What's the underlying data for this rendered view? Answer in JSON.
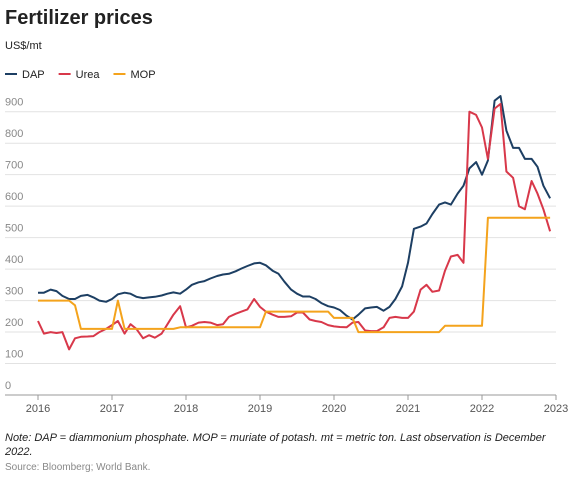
{
  "chart_data": {
    "type": "line",
    "title": "Fertilizer prices",
    "subtitle": "US$/mt",
    "note": "Note: DAP = diammonium phosphate. MOP = muriate of potash. mt = metric ton. Last observation is December 2022.",
    "source": "Source: Bloomberg; World Bank.",
    "x": [
      2016,
      2016.08,
      2016.17,
      2016.25,
      2016.33,
      2016.42,
      2016.5,
      2016.58,
      2016.67,
      2016.75,
      2016.83,
      2016.92,
      2017,
      2017.08,
      2017.17,
      2017.25,
      2017.33,
      2017.42,
      2017.5,
      2017.58,
      2017.67,
      2017.75,
      2017.83,
      2017.92,
      2018,
      2018.08,
      2018.17,
      2018.25,
      2018.33,
      2018.42,
      2018.5,
      2018.58,
      2018.67,
      2018.75,
      2018.83,
      2018.92,
      2019,
      2019.08,
      2019.17,
      2019.25,
      2019.33,
      2019.42,
      2019.5,
      2019.58,
      2019.67,
      2019.75,
      2019.83,
      2019.92,
      2020,
      2020.08,
      2020.17,
      2020.25,
      2020.33,
      2020.42,
      2020.5,
      2020.58,
      2020.67,
      2020.75,
      2020.83,
      2020.92,
      2021,
      2021.08,
      2021.17,
      2021.25,
      2021.33,
      2021.42,
      2021.5,
      2021.58,
      2021.67,
      2021.75,
      2021.83,
      2021.92,
      2022,
      2022.08,
      2022.17,
      2022.25,
      2022.33,
      2022.42,
      2022.5,
      2022.58,
      2022.67,
      2022.75,
      2022.83,
      2022.92
    ],
    "series": [
      {
        "name": "DAP",
        "color": "#1d3f63",
        "values": [
          325,
          325,
          335,
          330,
          315,
          305,
          305,
          315,
          318,
          310,
          300,
          296,
          305,
          320,
          325,
          322,
          312,
          308,
          310,
          312,
          316,
          322,
          326,
          322,
          335,
          350,
          358,
          362,
          370,
          378,
          383,
          385,
          393,
          402,
          410,
          418,
          420,
          412,
          395,
          385,
          360,
          335,
          322,
          313,
          313,
          305,
          292,
          282,
          278,
          270,
          252,
          240,
          255,
          275,
          278,
          280,
          268,
          280,
          305,
          345,
          420,
          528,
          535,
          545,
          575,
          605,
          612,
          605,
          640,
          665,
          720,
          740,
          700,
          745,
          935,
          950,
          840,
          785,
          785,
          750,
          750,
          725,
          665,
          625
        ]
      },
      {
        "name": "Urea",
        "color": "#d8384a",
        "values": [
          235,
          195,
          200,
          197,
          200,
          145,
          180,
          185,
          186,
          187,
          200,
          210,
          222,
          235,
          195,
          225,
          210,
          180,
          190,
          182,
          195,
          225,
          255,
          282,
          215,
          220,
          230,
          232,
          230,
          222,
          225,
          248,
          258,
          265,
          272,
          305,
          280,
          265,
          255,
          248,
          248,
          250,
          262,
          262,
          240,
          235,
          232,
          222,
          218,
          216,
          215,
          230,
          232,
          205,
          203,
          203,
          215,
          245,
          248,
          245,
          245,
          265,
          335,
          350,
          328,
          332,
          395,
          440,
          445,
          420,
          900,
          890,
          850,
          750,
          910,
          925,
          710,
          690,
          600,
          590,
          680,
          640,
          590,
          520
        ]
      },
      {
        "name": "MOP",
        "color": "#f4a31c",
        "values": [
          300,
          300,
          300,
          300,
          300,
          300,
          285,
          210,
          210,
          210,
          210,
          210,
          210,
          300,
          210,
          210,
          210,
          210,
          210,
          210,
          210,
          210,
          210,
          215,
          215,
          215,
          215,
          215,
          215,
          215,
          215,
          215,
          215,
          215,
          215,
          215,
          215,
          265,
          265,
          265,
          265,
          265,
          265,
          265,
          265,
          265,
          265,
          265,
          245,
          245,
          245,
          245,
          200,
          200,
          200,
          200,
          200,
          200,
          200,
          200,
          200,
          200,
          200,
          200,
          200,
          200,
          220,
          220,
          220,
          220,
          220,
          220,
          220,
          563,
          563,
          563,
          563,
          563,
          563,
          563,
          563,
          563,
          563,
          563
        ]
      }
    ],
    "xlim": [
      2016,
      2023
    ],
    "xticks": [
      2016,
      2017,
      2018,
      2019,
      2020,
      2021,
      2022,
      2023
    ],
    "ylim": [
      0,
      950
    ],
    "yticks": [
      0,
      100,
      200,
      300,
      400,
      500,
      600,
      700,
      800,
      900
    ],
    "grid": true
  }
}
